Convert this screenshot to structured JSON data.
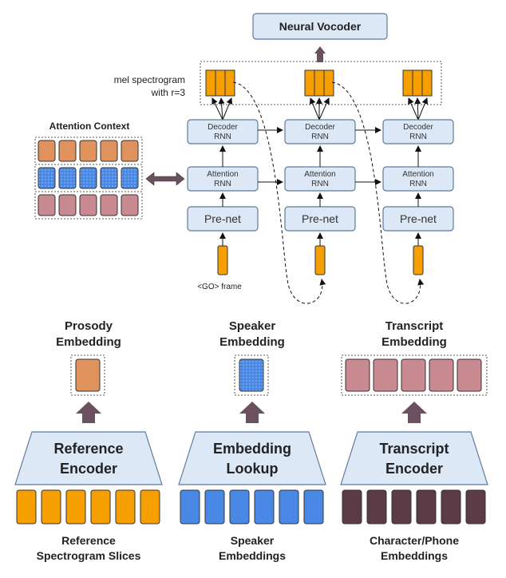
{
  "vocoder": {
    "label": "Neural Vocoder"
  },
  "mel": {
    "line1": "mel spectrogram",
    "line2": "with r=3"
  },
  "attention_context": {
    "title": "Attention Context"
  },
  "decoder_steps": [
    {
      "decoder_line1": "Decoder",
      "decoder_line2": "RNN",
      "attention_line1": "Attention",
      "attention_line2": "RNN",
      "prenet": "Pre-net"
    },
    {
      "decoder_line1": "Decoder",
      "decoder_line2": "RNN",
      "attention_line1": "Attention",
      "attention_line2": "RNN",
      "prenet": "Pre-net"
    },
    {
      "decoder_line1": "Decoder",
      "decoder_line2": "RNN",
      "attention_line1": "Attention",
      "attention_line2": "RNN",
      "prenet": "Pre-net"
    }
  ],
  "go_frame": {
    "label": "<GO> frame"
  },
  "embeddings": {
    "prosody": {
      "line1": "Prosody",
      "line2": "Embedding"
    },
    "speaker": {
      "line1": "Speaker",
      "line2": "Embedding"
    },
    "transcript": {
      "line1": "Transcript",
      "line2": "Embedding"
    }
  },
  "encoders": {
    "reference": {
      "line1": "Reference",
      "line2": "Encoder"
    },
    "lookup": {
      "line1": "Embedding",
      "line2": "Lookup"
    },
    "transcript": {
      "line1": "Transcript",
      "line2": "Encoder"
    }
  },
  "inputs": {
    "reference": {
      "line1": "Reference",
      "line2": "Spectrogram Slices"
    },
    "speaker": {
      "line1": "Speaker",
      "line2": "Embeddings"
    },
    "character": {
      "line1": "Character/Phone",
      "line2": "Embeddings"
    }
  },
  "colors": {
    "box_fill": "#dde8f6",
    "box_stroke": "#5f7a99",
    "orange": "#f5a000",
    "blue": "#4a88e6",
    "dark_maroon": "#5b3b45",
    "prosody_orange": "#e0925c",
    "context_blue": "#5b8fe0",
    "context_pink": "#c98a92",
    "arrow": "#6b5060"
  }
}
